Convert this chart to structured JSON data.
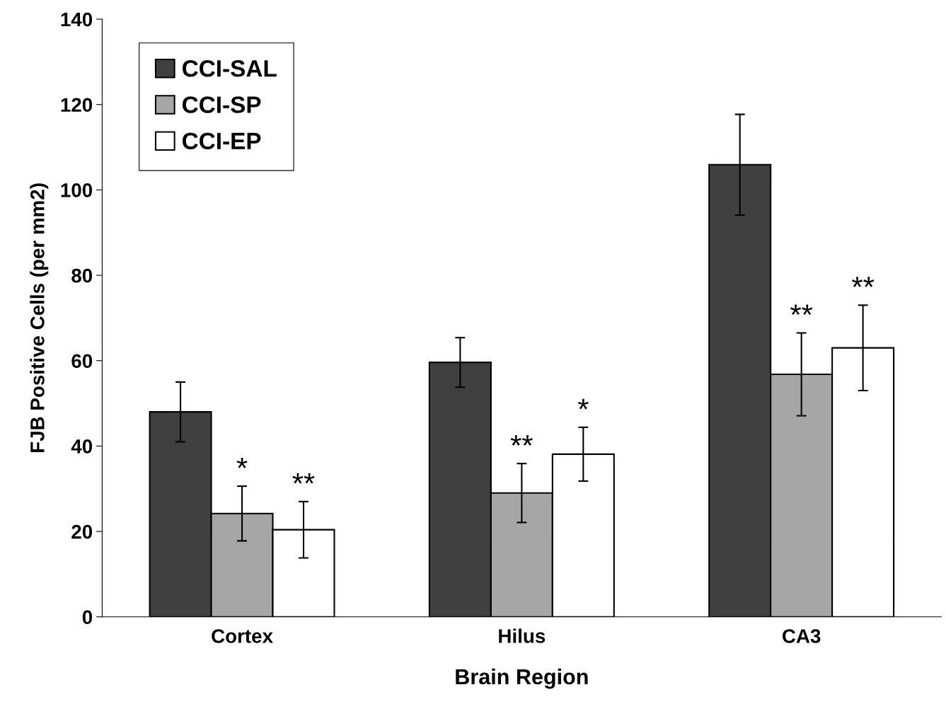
{
  "chart_data": {
    "type": "bar",
    "xlabel": "Brain Region",
    "ylabel": "FJB Positive Cells (per mm2)",
    "categories": [
      "Cortex",
      "Hilus",
      "CA3"
    ],
    "series": [
      {
        "name": "CCI-SAL",
        "color": "#404040",
        "values": [
          48.0,
          59.6,
          105.9
        ],
        "errors": [
          7.0,
          5.8,
          11.8
        ]
      },
      {
        "name": "CCI-SP",
        "color": "#a6a6a6",
        "values": [
          24.2,
          29.0,
          56.8
        ],
        "errors": [
          6.4,
          6.9,
          9.7
        ],
        "value_labels": [
          "*",
          "**",
          "**"
        ]
      },
      {
        "name": "CCI-EP",
        "color": "#ffffff",
        "values": [
          20.4,
          38.1,
          63.0
        ],
        "errors": [
          6.6,
          6.3,
          10.0
        ],
        "value_labels": [
          "**",
          "*",
          "**"
        ]
      }
    ],
    "ylim": [
      0,
      140
    ],
    "yticks": [
      0,
      20,
      40,
      60,
      80,
      100,
      120,
      140
    ],
    "grid": false,
    "legend": "top left"
  }
}
